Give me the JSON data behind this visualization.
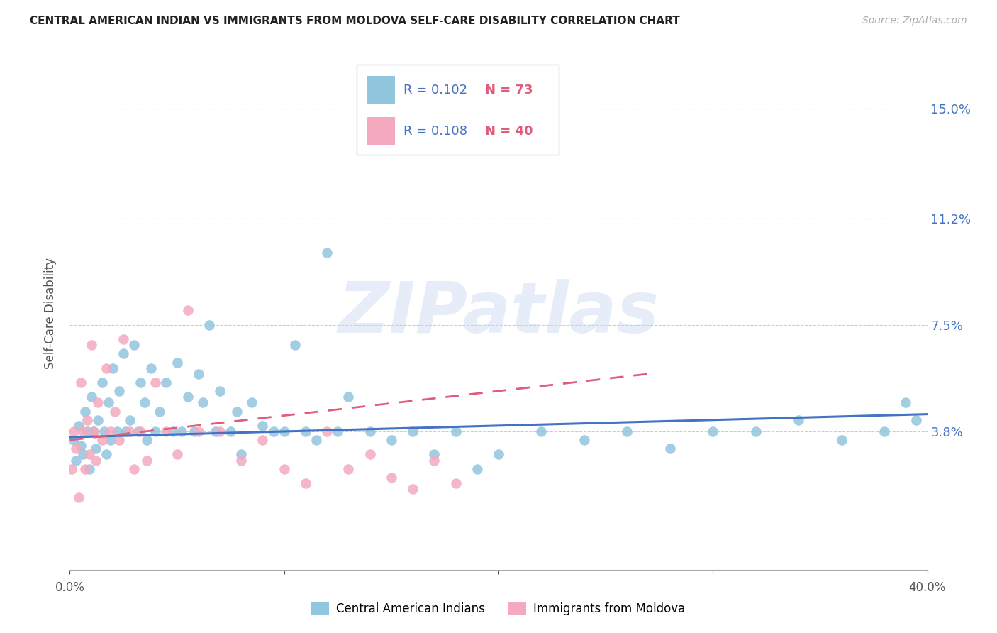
{
  "title": "CENTRAL AMERICAN INDIAN VS IMMIGRANTS FROM MOLDOVA SELF-CARE DISABILITY CORRELATION CHART",
  "source": "Source: ZipAtlas.com",
  "ylabel": "Self-Care Disability",
  "ytick_labels": [
    "15.0%",
    "11.2%",
    "7.5%",
    "3.8%"
  ],
  "ytick_values": [
    0.15,
    0.112,
    0.075,
    0.038
  ],
  "xlim": [
    0.0,
    0.4
  ],
  "ylim": [
    -0.01,
    0.168
  ],
  "color_blue": "#92c5de",
  "color_pink": "#f4a9be",
  "color_blue_text": "#4472c4",
  "color_line_blue": "#4472c4",
  "color_line_pink": "#e05c7a",
  "scatter_blue_x": [
    0.002,
    0.003,
    0.004,
    0.005,
    0.006,
    0.007,
    0.008,
    0.009,
    0.01,
    0.011,
    0.012,
    0.013,
    0.015,
    0.016,
    0.017,
    0.018,
    0.019,
    0.02,
    0.022,
    0.023,
    0.025,
    0.026,
    0.028,
    0.03,
    0.032,
    0.033,
    0.035,
    0.036,
    0.038,
    0.04,
    0.042,
    0.045,
    0.048,
    0.05,
    0.052,
    0.055,
    0.058,
    0.06,
    0.062,
    0.065,
    0.068,
    0.07,
    0.075,
    0.078,
    0.08,
    0.085,
    0.09,
    0.095,
    0.1,
    0.105,
    0.11,
    0.115,
    0.12,
    0.125,
    0.13,
    0.14,
    0.15,
    0.16,
    0.17,
    0.18,
    0.19,
    0.2,
    0.22,
    0.24,
    0.26,
    0.28,
    0.3,
    0.32,
    0.34,
    0.36,
    0.38,
    0.39,
    0.395
  ],
  "scatter_blue_y": [
    0.035,
    0.028,
    0.04,
    0.033,
    0.03,
    0.045,
    0.038,
    0.025,
    0.05,
    0.038,
    0.032,
    0.042,
    0.055,
    0.038,
    0.03,
    0.048,
    0.035,
    0.06,
    0.038,
    0.052,
    0.065,
    0.038,
    0.042,
    0.068,
    0.038,
    0.055,
    0.048,
    0.035,
    0.06,
    0.038,
    0.045,
    0.055,
    0.038,
    0.062,
    0.038,
    0.05,
    0.038,
    0.058,
    0.048,
    0.075,
    0.038,
    0.052,
    0.038,
    0.045,
    0.03,
    0.048,
    0.04,
    0.038,
    0.038,
    0.068,
    0.038,
    0.035,
    0.1,
    0.038,
    0.05,
    0.038,
    0.035,
    0.038,
    0.03,
    0.038,
    0.025,
    0.03,
    0.038,
    0.035,
    0.038,
    0.032,
    0.038,
    0.038,
    0.042,
    0.035,
    0.038,
    0.048,
    0.042
  ],
  "scatter_pink_x": [
    0.001,
    0.002,
    0.003,
    0.004,
    0.005,
    0.006,
    0.007,
    0.008,
    0.009,
    0.01,
    0.011,
    0.012,
    0.013,
    0.015,
    0.017,
    0.019,
    0.021,
    0.023,
    0.025,
    0.028,
    0.03,
    0.033,
    0.036,
    0.04,
    0.045,
    0.05,
    0.055,
    0.06,
    0.07,
    0.08,
    0.09,
    0.1,
    0.11,
    0.12,
    0.13,
    0.14,
    0.15,
    0.16,
    0.17,
    0.18
  ],
  "scatter_pink_y": [
    0.025,
    0.038,
    0.032,
    0.015,
    0.055,
    0.038,
    0.025,
    0.042,
    0.03,
    0.068,
    0.038,
    0.028,
    0.048,
    0.035,
    0.06,
    0.038,
    0.045,
    0.035,
    0.07,
    0.038,
    0.025,
    0.038,
    0.028,
    0.055,
    0.038,
    0.03,
    0.08,
    0.038,
    0.038,
    0.028,
    0.035,
    0.025,
    0.02,
    0.038,
    0.025,
    0.03,
    0.022,
    0.018,
    0.028,
    0.02
  ],
  "blue_trend_x": [
    0.0,
    0.4
  ],
  "blue_trend_y_start": 0.036,
  "blue_trend_y_end": 0.044,
  "pink_trend_x": [
    0.0,
    0.27
  ],
  "pink_trend_y_start": 0.035,
  "pink_trend_y_end": 0.058,
  "watermark": "ZIPatlas",
  "legend1_label": "Central American Indians",
  "legend2_label": "Immigrants from Moldova"
}
